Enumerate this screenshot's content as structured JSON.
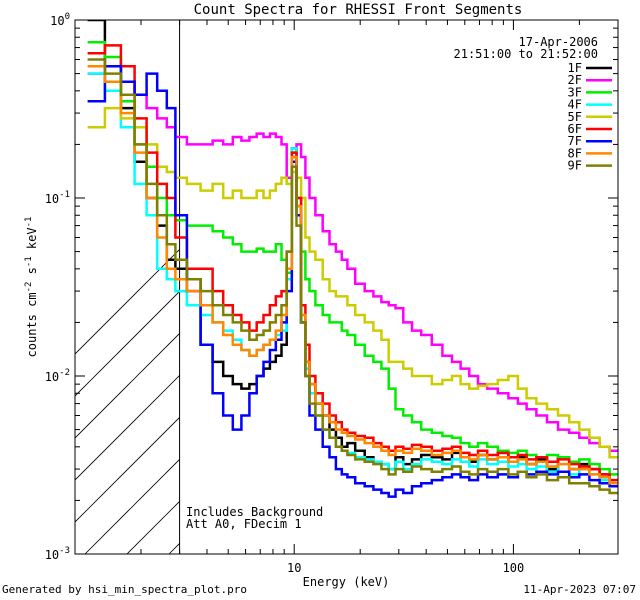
{
  "chart_data": {
    "type": "line",
    "title": "Count Spectra for RHESSI Front Segments",
    "date": "17-Apr-2006",
    "time_range": "21:51:00 to 21:52:00",
    "xlabel": "Energy (keV)",
    "ylabel_parts": [
      "counts cm",
      "-2",
      " s",
      "-1",
      " keV",
      "-1"
    ],
    "xscale": "log",
    "yscale": "log",
    "xlim": [
      1,
      300
    ],
    "ylim": [
      0.001,
      1
    ],
    "x_ticks": [
      {
        "value": 10,
        "label": "10"
      },
      {
        "value": 100,
        "label": "100"
      }
    ],
    "y_ticks": [
      {
        "value": 1,
        "mant": "10",
        "exp": "0"
      },
      {
        "value": 0.1,
        "mant": "10",
        "exp": "-1"
      },
      {
        "value": 0.01,
        "mant": "10",
        "exp": "-2"
      },
      {
        "value": 0.001,
        "mant": "10",
        "exp": "-3"
      }
    ],
    "hatched_region": [
      1,
      3
    ],
    "annotations": [
      "Includes Background",
      "Att A0, FDecim 1"
    ],
    "energy_keV": [
      1.25,
      1.5,
      1.75,
      2.0,
      2.25,
      2.5,
      2.75,
      3.0,
      3.5,
      4.0,
      4.5,
      5.0,
      5.5,
      6.0,
      6.5,
      7.0,
      7.5,
      8.0,
      8.5,
      9.0,
      9.5,
      10.0,
      10.5,
      11.0,
      11.5,
      12.0,
      13.0,
      14.0,
      15.0,
      16.0,
      17.0,
      18.0,
      20.0,
      22.0,
      24.0,
      26.0,
      28.0,
      30.0,
      33.0,
      36.0,
      40.0,
      45.0,
      50.0,
      55.0,
      60.0,
      66.0,
      72.0,
      80.0,
      90.0,
      100.0,
      110.0,
      120.0,
      135.0,
      150.0,
      170.0,
      190.0,
      210.0,
      235.0,
      260.0,
      290.0
    ],
    "series": [
      {
        "name": "1F",
        "color": "#000000",
        "values": [
          1.0,
          0.55,
          0.32,
          0.16,
          0.1,
          0.07,
          0.045,
          0.04,
          0.035,
          0.015,
          0.012,
          0.01,
          0.009,
          0.0085,
          0.009,
          0.01,
          0.011,
          0.012,
          0.013,
          0.015,
          0.04,
          0.19,
          0.09,
          0.02,
          0.012,
          0.009,
          0.007,
          0.006,
          0.005,
          0.0045,
          0.004,
          0.0042,
          0.0038,
          0.0035,
          0.0033,
          0.0032,
          0.003,
          0.0035,
          0.0032,
          0.0034,
          0.0036,
          0.0035,
          0.0034,
          0.0037,
          0.0035,
          0.0033,
          0.0036,
          0.0034,
          0.0037,
          0.0033,
          0.0035,
          0.0032,
          0.0034,
          0.003,
          0.0035,
          0.003,
          0.0032,
          0.003,
          0.0028,
          0.0025
        ]
      },
      {
        "name": "2F",
        "color": "#ff00ff",
        "values": [
          0.5,
          0.55,
          0.45,
          0.38,
          0.32,
          0.28,
          0.25,
          0.22,
          0.2,
          0.2,
          0.21,
          0.2,
          0.22,
          0.21,
          0.22,
          0.23,
          0.22,
          0.23,
          0.22,
          0.2,
          0.13,
          0.17,
          0.2,
          0.17,
          0.13,
          0.1,
          0.08,
          0.065,
          0.055,
          0.05,
          0.045,
          0.04,
          0.033,
          0.03,
          0.028,
          0.026,
          0.025,
          0.024,
          0.02,
          0.018,
          0.017,
          0.015,
          0.013,
          0.012,
          0.011,
          0.01,
          0.009,
          0.0085,
          0.008,
          0.0075,
          0.007,
          0.0065,
          0.006,
          0.0055,
          0.005,
          0.0048,
          0.0045,
          0.0042,
          0.004,
          0.0038
        ]
      },
      {
        "name": "3F",
        "color": "#00ee00",
        "values": [
          0.75,
          0.62,
          0.35,
          0.2,
          0.15,
          0.1,
          0.08,
          0.075,
          0.07,
          0.07,
          0.065,
          0.06,
          0.055,
          0.05,
          0.05,
          0.052,
          0.05,
          0.05,
          0.055,
          0.045,
          0.038,
          0.18,
          0.1,
          0.05,
          0.035,
          0.03,
          0.025,
          0.022,
          0.02,
          0.02,
          0.018,
          0.017,
          0.015,
          0.013,
          0.012,
          0.011,
          0.0085,
          0.0065,
          0.006,
          0.0055,
          0.005,
          0.0048,
          0.0046,
          0.0045,
          0.0042,
          0.004,
          0.0042,
          0.004,
          0.0038,
          0.0037,
          0.0038,
          0.0036,
          0.0035,
          0.0036,
          0.0035,
          0.0033,
          0.0034,
          0.0032,
          0.003,
          0.0028
        ]
      },
      {
        "name": "4F",
        "color": "#00ffff",
        "values": [
          0.5,
          0.4,
          0.25,
          0.12,
          0.08,
          0.04,
          0.035,
          0.03,
          0.025,
          0.022,
          0.02,
          0.018,
          0.016,
          0.014,
          0.013,
          0.014,
          0.015,
          0.016,
          0.017,
          0.018,
          0.035,
          0.19,
          0.09,
          0.02,
          0.011,
          0.008,
          0.006,
          0.005,
          0.0045,
          0.004,
          0.0038,
          0.0037,
          0.0035,
          0.0034,
          0.0033,
          0.0032,
          0.003,
          0.0033,
          0.003,
          0.0032,
          0.0034,
          0.0033,
          0.0032,
          0.0034,
          0.0033,
          0.0031,
          0.0034,
          0.0032,
          0.0033,
          0.0031,
          0.0032,
          0.003,
          0.0031,
          0.0029,
          0.0032,
          0.0028,
          0.003,
          0.0028,
          0.0026,
          0.0024
        ]
      },
      {
        "name": "5F",
        "color": "#cccc00",
        "values": [
          0.25,
          0.32,
          0.28,
          0.25,
          0.2,
          0.15,
          0.14,
          0.13,
          0.12,
          0.11,
          0.12,
          0.1,
          0.11,
          0.1,
          0.1,
          0.11,
          0.1,
          0.11,
          0.12,
          0.13,
          0.12,
          0.14,
          0.13,
          0.1,
          0.06,
          0.05,
          0.045,
          0.035,
          0.03,
          0.028,
          0.028,
          0.025,
          0.022,
          0.02,
          0.018,
          0.016,
          0.012,
          0.012,
          0.011,
          0.01,
          0.01,
          0.009,
          0.0095,
          0.01,
          0.009,
          0.0085,
          0.0088,
          0.009,
          0.0095,
          0.01,
          0.0085,
          0.0075,
          0.007,
          0.0065,
          0.006,
          0.0055,
          0.005,
          0.0045,
          0.004,
          0.0035
        ]
      },
      {
        "name": "6F",
        "color": "#ff0000",
        "values": [
          0.65,
          0.72,
          0.55,
          0.28,
          0.18,
          0.12,
          0.1,
          0.06,
          0.04,
          0.04,
          0.03,
          0.025,
          0.022,
          0.02,
          0.018,
          0.02,
          0.022,
          0.025,
          0.028,
          0.03,
          0.05,
          0.18,
          0.1,
          0.025,
          0.015,
          0.01,
          0.008,
          0.007,
          0.006,
          0.0055,
          0.005,
          0.0048,
          0.0046,
          0.0045,
          0.0042,
          0.004,
          0.0038,
          0.004,
          0.0039,
          0.0041,
          0.004,
          0.0038,
          0.0039,
          0.004,
          0.0037,
          0.0036,
          0.0038,
          0.0036,
          0.0037,
          0.0035,
          0.0036,
          0.0034,
          0.0035,
          0.0033,
          0.0034,
          0.0032,
          0.0031,
          0.003,
          0.0028,
          0.0026
        ]
      },
      {
        "name": "7F",
        "color": "#0000ff",
        "values": [
          0.35,
          0.55,
          0.45,
          0.38,
          0.5,
          0.4,
          0.32,
          0.08,
          0.03,
          0.015,
          0.008,
          0.006,
          0.005,
          0.006,
          0.008,
          0.01,
          0.012,
          0.014,
          0.016,
          0.02,
          0.03,
          0.16,
          0.08,
          0.02,
          0.01,
          0.006,
          0.005,
          0.004,
          0.0035,
          0.003,
          0.0028,
          0.0027,
          0.0025,
          0.0024,
          0.0023,
          0.0022,
          0.0021,
          0.0023,
          0.0022,
          0.0024,
          0.0025,
          0.0026,
          0.0027,
          0.0028,
          0.0027,
          0.0026,
          0.0028,
          0.0027,
          0.0028,
          0.0027,
          0.0029,
          0.0028,
          0.0029,
          0.0028,
          0.0029,
          0.0027,
          0.0028,
          0.0026,
          0.0025,
          0.0024
        ]
      },
      {
        "name": "8F",
        "color": "#ff8800",
        "values": [
          0.55,
          0.45,
          0.3,
          0.18,
          0.1,
          0.06,
          0.04,
          0.035,
          0.03,
          0.025,
          0.02,
          0.017,
          0.015,
          0.014,
          0.013,
          0.014,
          0.015,
          0.016,
          0.018,
          0.022,
          0.04,
          0.17,
          0.09,
          0.022,
          0.012,
          0.009,
          0.007,
          0.006,
          0.0055,
          0.005,
          0.0048,
          0.0046,
          0.0044,
          0.0042,
          0.004,
          0.0038,
          0.0036,
          0.0038,
          0.0037,
          0.0039,
          0.0038,
          0.0036,
          0.0037,
          0.0038,
          0.0035,
          0.0034,
          0.0036,
          0.0034,
          0.0035,
          0.0033,
          0.0034,
          0.0032,
          0.0033,
          0.0031,
          0.0032,
          0.003,
          0.003,
          0.0028,
          0.0027,
          0.0025
        ]
      },
      {
        "name": "9F",
        "color": "#808000",
        "values": [
          0.6,
          0.5,
          0.38,
          0.2,
          0.12,
          0.08,
          0.055,
          0.045,
          0.035,
          0.03,
          0.025,
          0.022,
          0.02,
          0.018,
          0.016,
          0.017,
          0.018,
          0.02,
          0.022,
          0.025,
          0.05,
          0.15,
          0.07,
          0.02,
          0.01,
          0.007,
          0.006,
          0.005,
          0.0045,
          0.004,
          0.0038,
          0.0036,
          0.0034,
          0.0033,
          0.0032,
          0.003,
          0.0028,
          0.003,
          0.0029,
          0.0031,
          0.003,
          0.0029,
          0.003,
          0.0031,
          0.0029,
          0.0028,
          0.003,
          0.0029,
          0.003,
          0.0028,
          0.0029,
          0.0027,
          0.0028,
          0.0026,
          0.0027,
          0.0025,
          0.0025,
          0.0024,
          0.0023,
          0.0022
        ]
      }
    ]
  },
  "footer": {
    "generated_by": "Generated by hsi_min_spectra_plot.pro",
    "date": "11-Apr-2023 07:07"
  }
}
